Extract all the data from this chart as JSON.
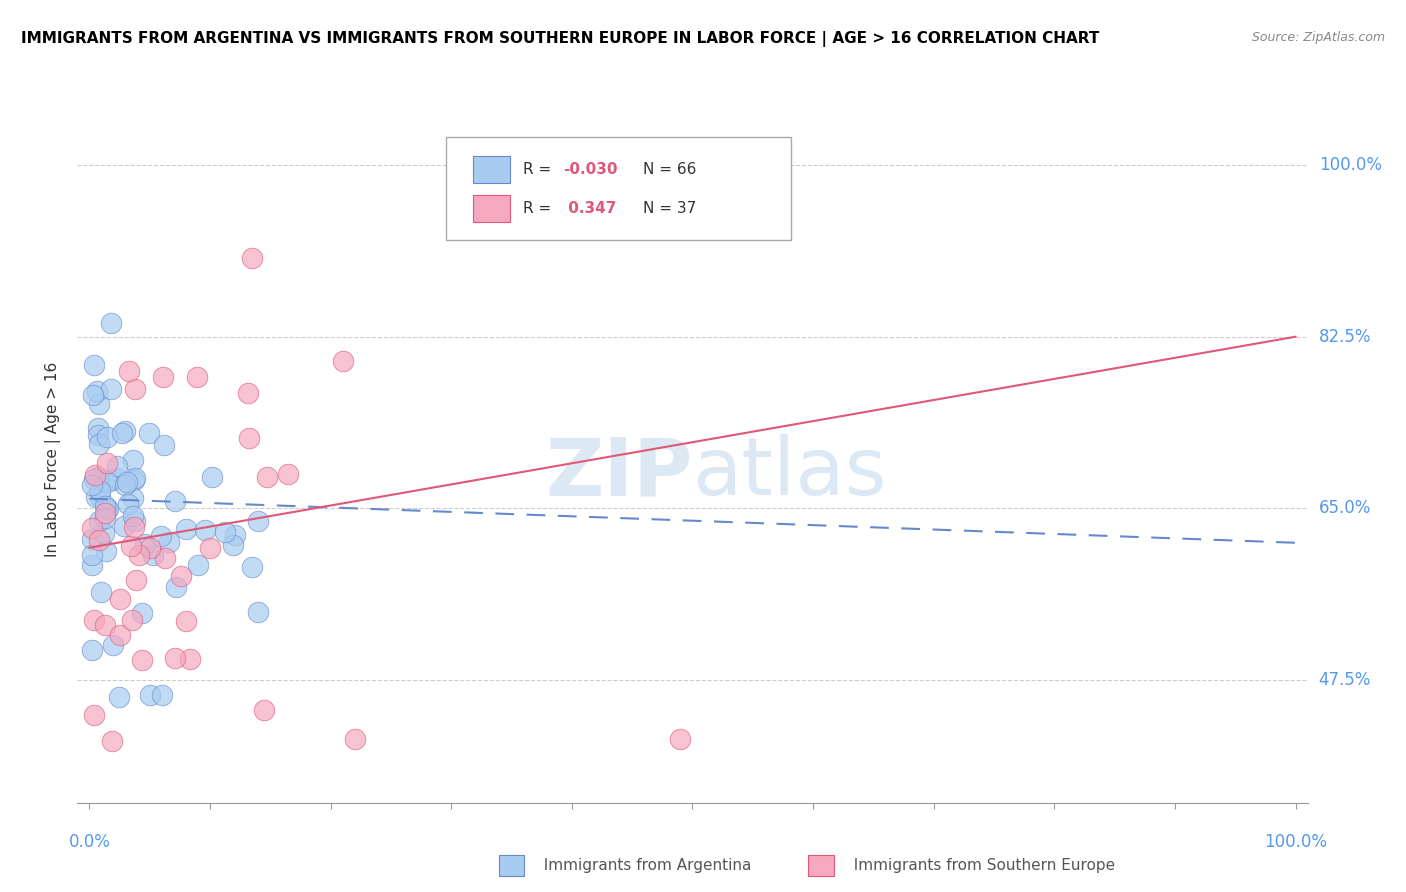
{
  "title": "IMMIGRANTS FROM ARGENTINA VS IMMIGRANTS FROM SOUTHERN EUROPE IN LABOR FORCE | AGE > 16 CORRELATION CHART",
  "source": "Source: ZipAtlas.com",
  "ylabel": "In Labor Force | Age > 16",
  "ytick_labels": [
    "47.5%",
    "65.0%",
    "82.5%",
    "100.0%"
  ],
  "ytick_values": [
    0.475,
    0.65,
    0.825,
    1.0
  ],
  "xlim": [
    0.0,
    1.0
  ],
  "ylim": [
    0.35,
    1.05
  ],
  "color_argentina": "#a8ccf0",
  "color_s_europe": "#f5a8c0",
  "color_line_argentina": "#6688cc",
  "color_line_s_europe": "#e05878",
  "color_tick_labels": "#5599ee",
  "watermark_color": "#dde8f5",
  "arg_line_x": [
    0.0,
    1.0
  ],
  "arg_line_y": [
    0.66,
    0.615
  ],
  "seu_line_x": [
    0.0,
    1.0
  ],
  "seu_line_y": [
    0.61,
    0.825
  ]
}
